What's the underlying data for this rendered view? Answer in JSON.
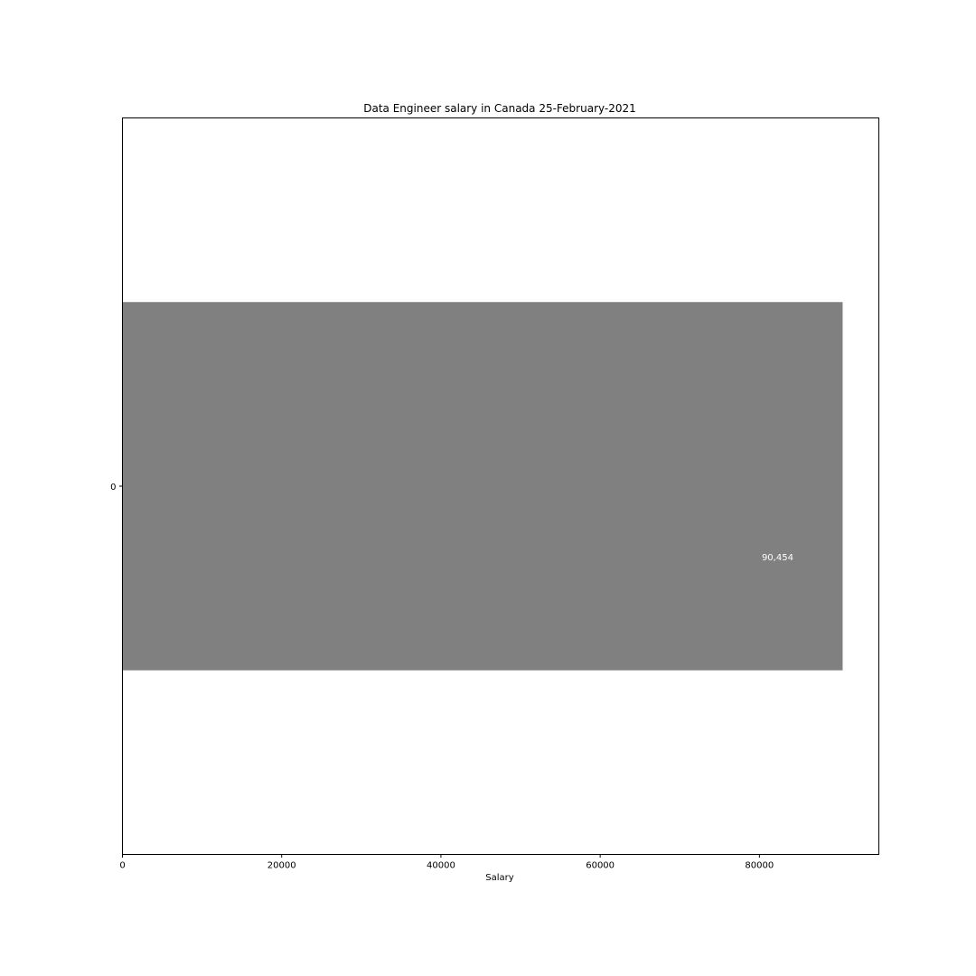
{
  "chart_data": {
    "type": "bar",
    "orientation": "horizontal",
    "title": "Data Engineer salary in Canada 25-February-2021",
    "xlabel": "Salary",
    "ylabel": "",
    "categories": [
      "0"
    ],
    "values": [
      90454
    ],
    "data_labels": [
      "90,454"
    ],
    "xlim": [
      0,
      95000
    ],
    "xticks": [
      0,
      20000,
      40000,
      60000,
      80000
    ],
    "xtick_labels": [
      "0",
      "20000",
      "40000",
      "60000",
      "80000"
    ],
    "bar_color": "#808080",
    "data_label_color": "#ffffff",
    "grid": false,
    "legend": "none"
  }
}
